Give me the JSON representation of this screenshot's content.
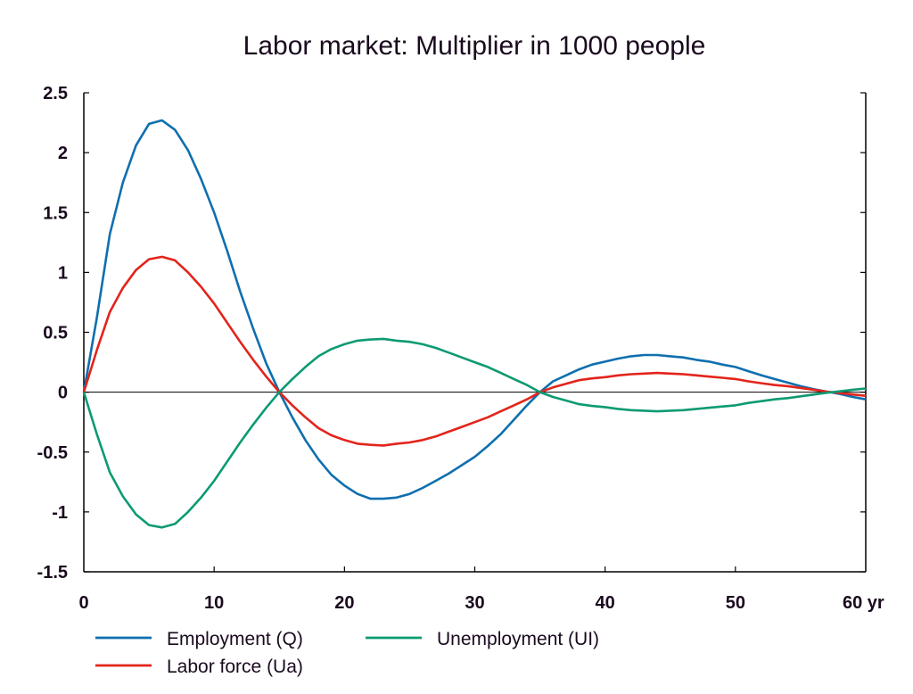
{
  "chart_data": {
    "type": "line",
    "title": "Labor market: Multiplier in 1000 people",
    "xlabel": "",
    "ylabel": "",
    "xlim": [
      0,
      60
    ],
    "ylim": [
      -1.5,
      2.5
    ],
    "grid": false,
    "legend_position": "bottom",
    "x_ticks": [
      0,
      10,
      20,
      30,
      40,
      50,
      60
    ],
    "x_tick_labels": [
      "0",
      "10",
      "20",
      "30",
      "40",
      "50",
      "60 yr"
    ],
    "y_ticks": [
      2.5,
      2,
      1.5,
      1,
      0.5,
      0,
      -0.5,
      -1,
      -1.5
    ],
    "y_tick_labels": [
      "2.5",
      "2",
      "1.5",
      "1",
      "0.5",
      "0",
      "-0.5",
      "-1",
      "-1.5"
    ],
    "x": [
      0,
      1,
      2,
      3,
      4,
      5,
      6,
      7,
      8,
      9,
      10,
      11,
      12,
      13,
      14,
      15,
      16,
      17,
      18,
      19,
      20,
      21,
      22,
      23,
      24,
      25,
      26,
      27,
      28,
      29,
      30,
      31,
      32,
      33,
      34,
      35,
      36,
      37,
      38,
      39,
      40,
      41,
      42,
      43,
      44,
      45,
      46,
      47,
      48,
      49,
      50,
      51,
      52,
      53,
      54,
      55,
      56,
      57,
      58,
      59,
      60
    ],
    "series": [
      {
        "name": "Employment (Q)",
        "color": "#0f6fae",
        "values": [
          0,
          0.62,
          1.32,
          1.75,
          2.06,
          2.24,
          2.27,
          2.19,
          2.02,
          1.78,
          1.5,
          1.18,
          0.84,
          0.53,
          0.24,
          0,
          -0.21,
          -0.4,
          -0.56,
          -0.69,
          -0.78,
          -0.85,
          -0.89,
          -0.89,
          -0.88,
          -0.85,
          -0.8,
          -0.74,
          -0.68,
          -0.61,
          -0.54,
          -0.45,
          -0.35,
          -0.23,
          -0.11,
          0,
          0.09,
          0.14,
          0.19,
          0.23,
          0.255,
          0.28,
          0.3,
          0.31,
          0.31,
          0.3,
          0.29,
          0.27,
          0.255,
          0.23,
          0.21,
          0.175,
          0.14,
          0.11,
          0.08,
          0.05,
          0.025,
          0.005,
          -0.015,
          -0.04,
          -0.06
        ]
      },
      {
        "name": "Labor force (Ua)",
        "color": "#e3241b",
        "values": [
          0,
          0.35,
          0.67,
          0.87,
          1.02,
          1.11,
          1.13,
          1.1,
          1.0,
          0.88,
          0.74,
          0.58,
          0.42,
          0.27,
          0.13,
          0,
          -0.11,
          -0.21,
          -0.3,
          -0.36,
          -0.4,
          -0.43,
          -0.44,
          -0.445,
          -0.43,
          -0.42,
          -0.4,
          -0.37,
          -0.33,
          -0.29,
          -0.25,
          -0.21,
          -0.16,
          -0.11,
          -0.06,
          0,
          0.04,
          0.07,
          0.1,
          0.115,
          0.125,
          0.14,
          0.15,
          0.155,
          0.16,
          0.155,
          0.15,
          0.14,
          0.13,
          0.12,
          0.11,
          0.09,
          0.075,
          0.06,
          0.05,
          0.035,
          0.02,
          0.005,
          -0.007,
          -0.02,
          -0.03
        ]
      },
      {
        "name": "Unemployment (UI)",
        "color": "#0d9a73",
        "values": [
          0,
          -0.35,
          -0.67,
          -0.87,
          -1.02,
          -1.11,
          -1.13,
          -1.1,
          -1.0,
          -0.88,
          -0.74,
          -0.58,
          -0.42,
          -0.27,
          -0.13,
          0,
          0.11,
          0.21,
          0.3,
          0.36,
          0.4,
          0.43,
          0.44,
          0.445,
          0.43,
          0.42,
          0.4,
          0.37,
          0.33,
          0.29,
          0.25,
          0.21,
          0.16,
          0.11,
          0.06,
          0,
          -0.04,
          -0.07,
          -0.1,
          -0.115,
          -0.125,
          -0.14,
          -0.15,
          -0.155,
          -0.16,
          -0.155,
          -0.15,
          -0.14,
          -0.13,
          -0.12,
          -0.11,
          -0.09,
          -0.075,
          -0.06,
          -0.05,
          -0.035,
          -0.02,
          -0.005,
          0.007,
          0.02,
          0.03
        ]
      }
    ],
    "legend": [
      {
        "label": "Employment (Q)",
        "color": "#0f6fae"
      },
      {
        "label": "Unemployment (UI)",
        "color": "#0d9a73"
      },
      {
        "label": "Labor force (Ua)",
        "color": "#e3241b"
      }
    ]
  }
}
